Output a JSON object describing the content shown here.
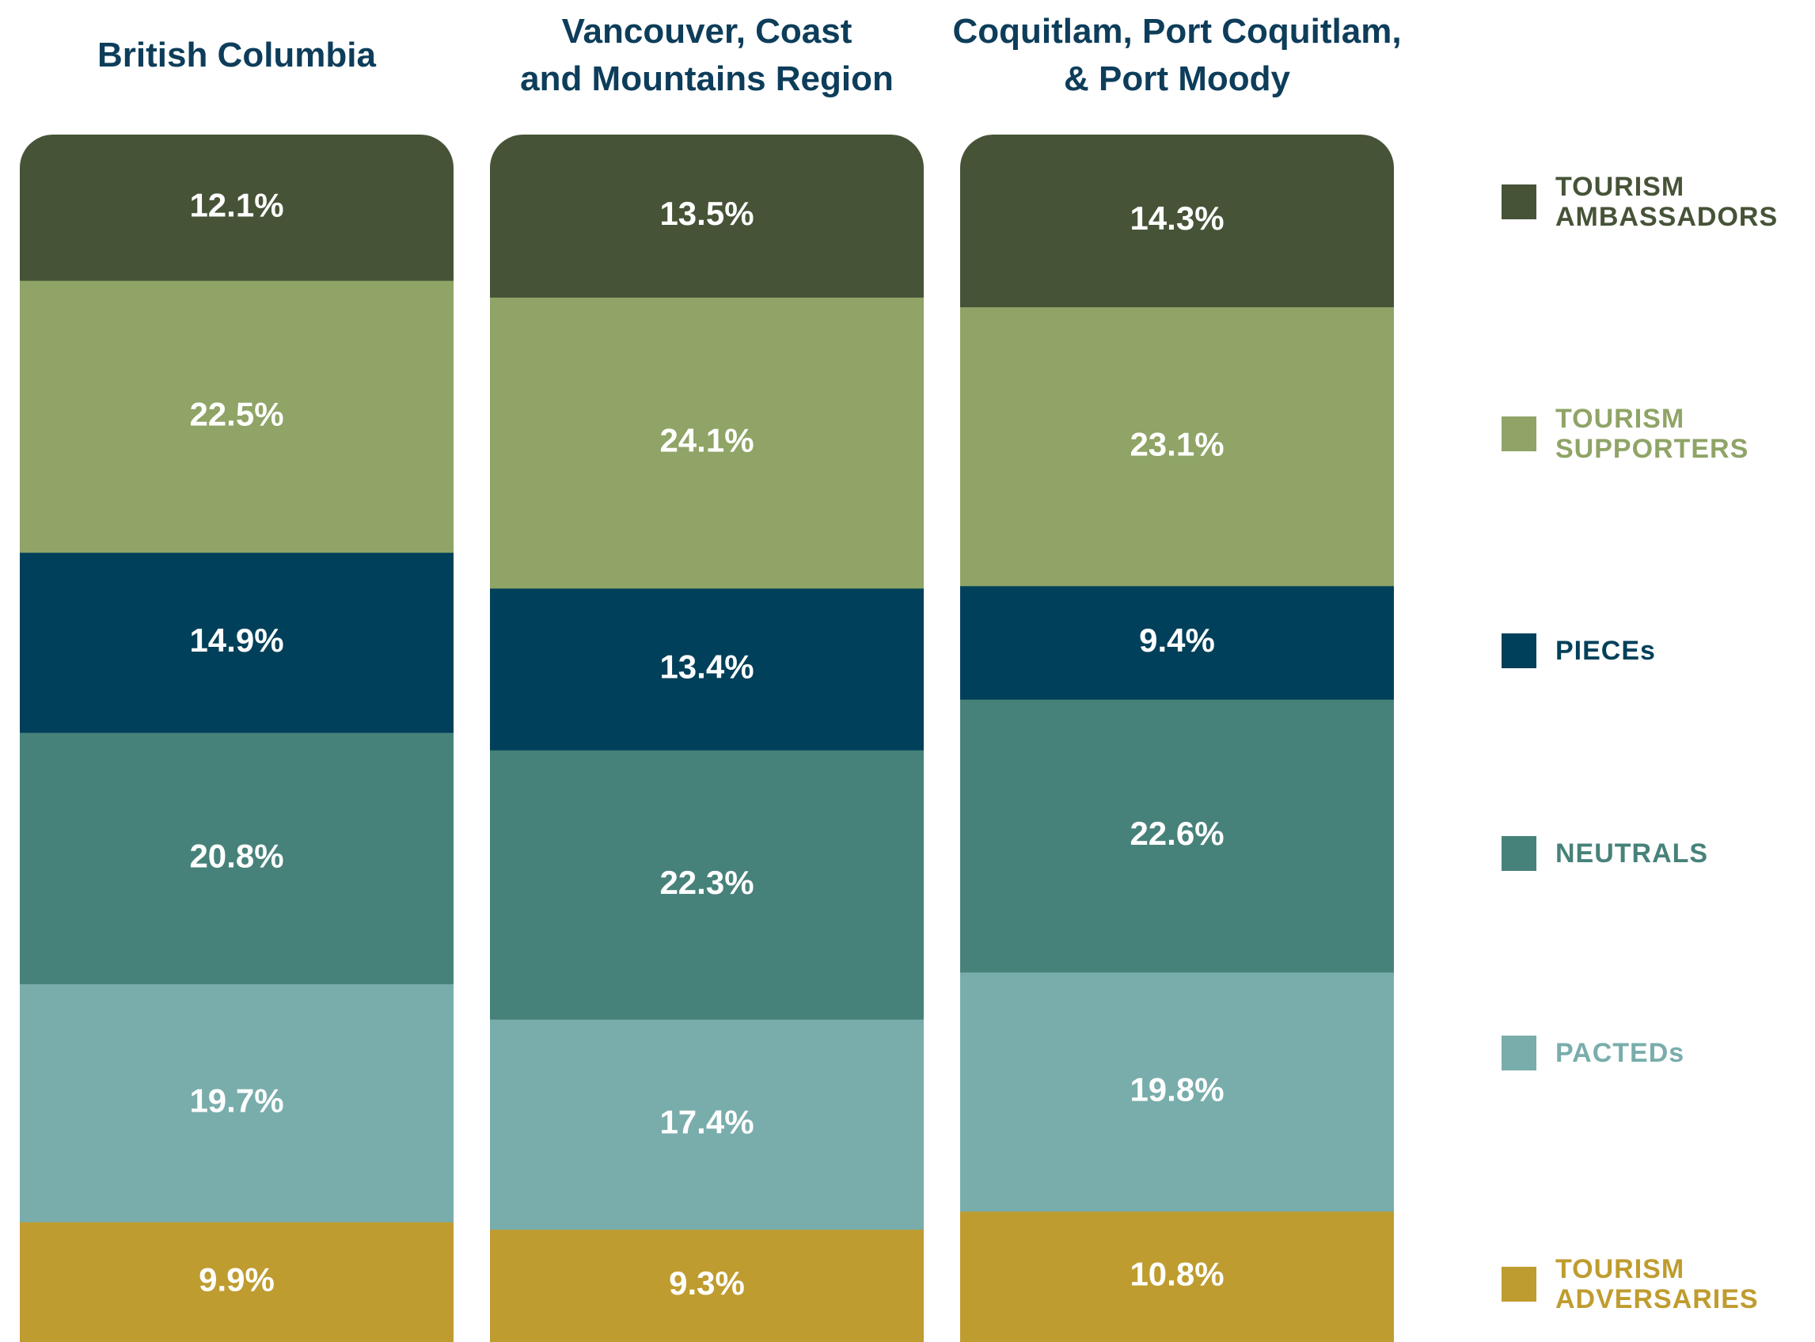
{
  "chart_data": {
    "type": "bar",
    "stacked": true,
    "categories": [
      "British Columbia",
      "Vancouver, Coast\nand Mountains Region",
      "Coquitlam, Port Coquitlam,\n& Port Moody"
    ],
    "series": [
      {
        "name": "TOURISM AMBASSADORS",
        "color": "#465337",
        "values": [
          12.1,
          13.5,
          14.3
        ],
        "value_labels": [
          "12.1%",
          "13.5%",
          "14.3%"
        ]
      },
      {
        "name": "TOURISM SUPPORTERS",
        "color": "#8fa466",
        "values": [
          22.5,
          24.1,
          23.1
        ],
        "value_labels": [
          "22.5%",
          "24.1%",
          "23.1%"
        ]
      },
      {
        "name": "PIECEs",
        "color": "#00405a",
        "values": [
          14.9,
          13.4,
          9.4
        ],
        "value_labels": [
          "14.9%",
          "13.4%",
          "9.4%"
        ]
      },
      {
        "name": "NEUTRALS",
        "color": "#47827a",
        "values": [
          20.8,
          22.3,
          22.6
        ],
        "value_labels": [
          "20.8%",
          "22.3%",
          "22.6%"
        ]
      },
      {
        "name": "PACTEDs",
        "color": "#79adab",
        "values": [
          19.7,
          17.4,
          19.8
        ],
        "value_labels": [
          "19.7%",
          "17.4%",
          "19.8%"
        ]
      },
      {
        "name": "TOURISM ADVERSARIES",
        "color": "#bf9c2f",
        "values": [
          9.9,
          9.3,
          10.8
        ],
        "value_labels": [
          "9.9%",
          "9.3%",
          "10.8%"
        ]
      }
    ]
  }
}
